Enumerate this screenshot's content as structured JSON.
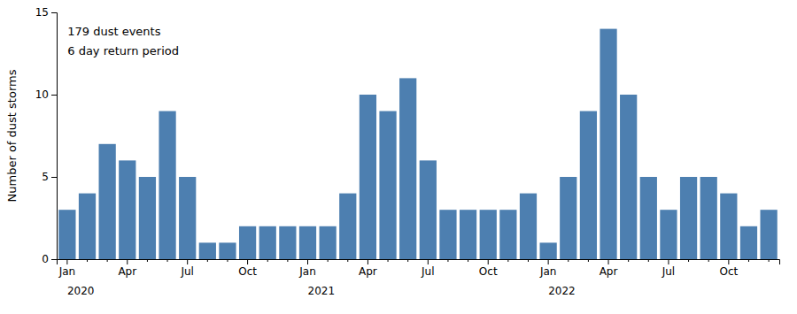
{
  "chart_data": {
    "type": "bar",
    "categories": [
      "Jan",
      null,
      null,
      "Apr",
      null,
      null,
      "Jul",
      null,
      null,
      "Oct",
      null,
      null,
      "Jan",
      null,
      null,
      "Apr",
      null,
      null,
      "Jul",
      null,
      null,
      "Oct",
      null,
      null,
      "Jan",
      null,
      null,
      "Apr",
      null,
      null,
      "Jul",
      null,
      null,
      "Oct",
      null,
      null
    ],
    "year_labels": [
      "2020",
      "2021",
      "2022"
    ],
    "values": [
      3,
      4,
      7,
      6,
      5,
      9,
      5,
      1,
      1,
      2,
      2,
      2,
      2,
      2,
      4,
      10,
      9,
      11,
      6,
      3,
      3,
      3,
      3,
      4,
      1,
      5,
      9,
      14,
      10,
      5,
      3,
      5,
      5,
      4,
      2,
      3
    ],
    "color": "#4d7fb0",
    "ylabel": "Number of dust storms",
    "ylim": [
      0,
      15
    ],
    "yticks": [
      0,
      5,
      10,
      15
    ],
    "annotations": [
      "179 dust events",
      "6 day return period"
    ],
    "grid": false
  }
}
